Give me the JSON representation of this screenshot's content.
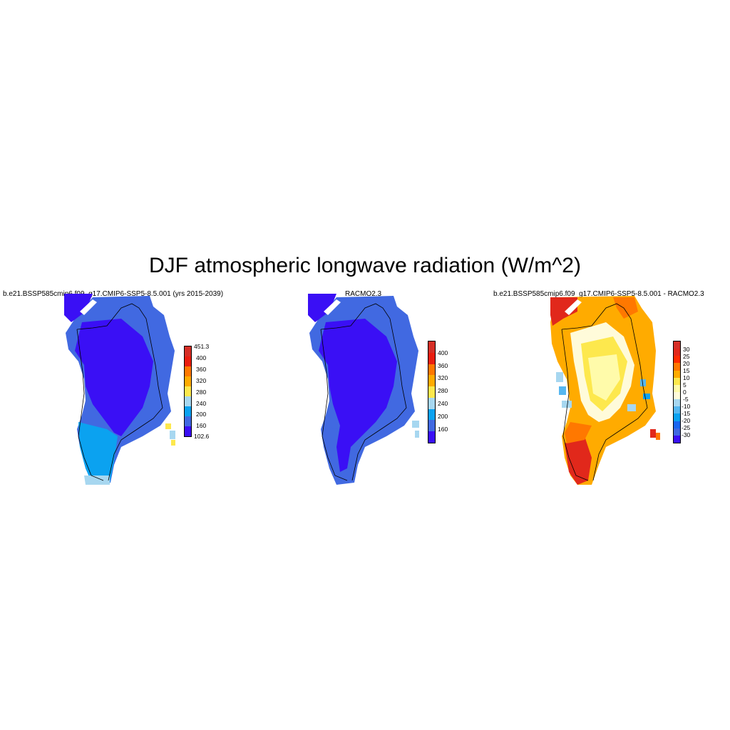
{
  "title": "DJF atmospheric longwave radiation (W/m^2)",
  "panels": [
    {
      "title": "b.e21.BSSP585cmip6.f09_g17.CMIP6-SSP5-8.5.001 (yrs 2015-2039)",
      "colorbar": {
        "labels": [
          "451.3",
          "400",
          "360",
          "320",
          "280",
          "240",
          "200",
          "160",
          "102.6"
        ],
        "colors": [
          "#d62f27",
          "#ea1e10",
          "#ff7800",
          "#ffab00",
          "#fde84d",
          "#a7d7f0",
          "#0ba2f0",
          "#4169e1",
          "#3a0ff5"
        ]
      }
    },
    {
      "title": "RACMO2.3",
      "colorbar": {
        "labels": [
          "400",
          "360",
          "320",
          "280",
          "240",
          "200",
          "160"
        ],
        "colors": [
          "#d62f27",
          "#ea1e10",
          "#ff7800",
          "#ffab00",
          "#fde84d",
          "#a7d7f0",
          "#0ba2f0",
          "#4169e1",
          "#3a0ff5"
        ]
      }
    },
    {
      "title": "b.e21.BSSP585cmip6.f09_g17.CMIP6-SSP5-8.5.001 - RACMO2.3",
      "colorbar": {
        "labels": [
          "30",
          "25",
          "20",
          "15",
          "10",
          "5",
          "0",
          "-5",
          "-10",
          "-15",
          "-20",
          "-25",
          "-30"
        ],
        "colors": [
          "#d62f27",
          "#e1281b",
          "#ff2b00",
          "#ff7800",
          "#ffab00",
          "#fde84d",
          "#fffbaa",
          "#fffbda",
          "#a7d7f0",
          "#56b7f0",
          "#0ba2f0",
          "#1b67f0",
          "#4169e1",
          "#3a0ff5"
        ]
      }
    }
  ]
}
